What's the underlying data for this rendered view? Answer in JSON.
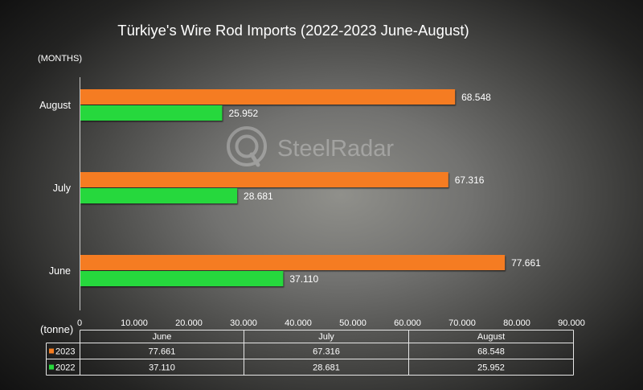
{
  "watermark": "SteelRadar",
  "chart_data": {
    "type": "bar",
    "orientation": "horizontal",
    "title": "Türkiye's Wire Rod Imports (2022-2023 June-August)",
    "ylabel": "(MONTHS)",
    "xlabel": "(tonne)",
    "categories": [
      "August",
      "July",
      "June"
    ],
    "series": [
      {
        "name": "2023",
        "color": "#f57c20",
        "values": [
          68548,
          67316,
          77661
        ],
        "labels": [
          "68.548",
          "67.316",
          "77.661"
        ]
      },
      {
        "name": "2022",
        "color": "#27d83c",
        "values": [
          25952,
          28681,
          37110
        ],
        "labels": [
          "25.952",
          "28.681",
          "37.110"
        ]
      }
    ],
    "xlim": [
      0,
      90000
    ],
    "xticks": [
      "0",
      "10.000",
      "20.000",
      "30.000",
      "40.000",
      "50.000",
      "60.000",
      "70.000",
      "80.000",
      "90.000"
    ],
    "grid": false
  },
  "table": {
    "columns": [
      "June",
      "July",
      "August"
    ],
    "rows": [
      [
        "77.661",
        "67.316",
        "68.548"
      ],
      [
        "37.110",
        "28.681",
        "25.952"
      ]
    ]
  }
}
